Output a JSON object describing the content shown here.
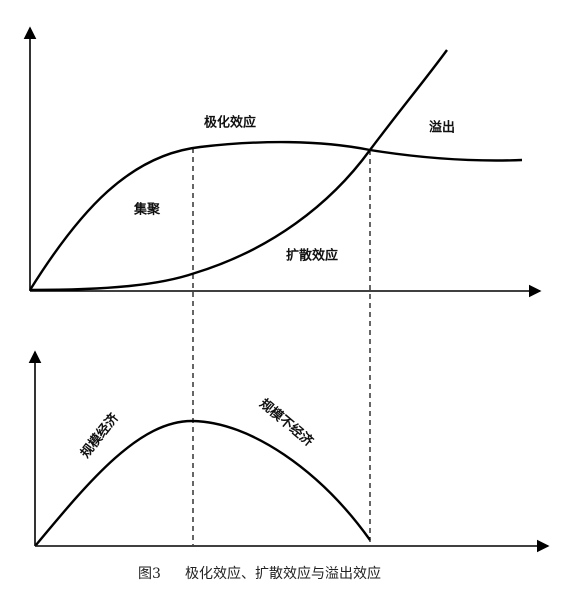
{
  "labels": {
    "polarization": "极化效应",
    "spillover": "溢出",
    "agglomeration": "集聚",
    "diffusion": "扩散效应",
    "economies_of_scale": "规模经济",
    "diseconomies_of_scale": "规模不经济"
  },
  "caption": {
    "number": "图3",
    "text": "极化效应、扩散效应与溢出效应"
  }
}
